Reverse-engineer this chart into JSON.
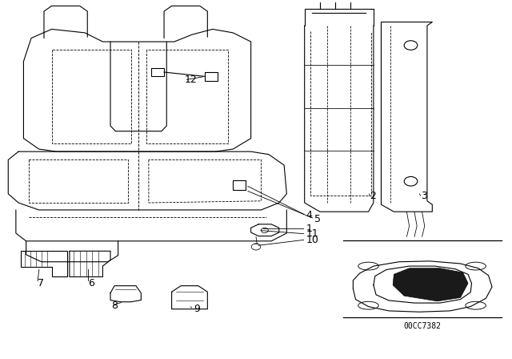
{
  "title": "",
  "background_color": "#ffffff",
  "fig_width": 6.4,
  "fig_height": 4.48,
  "dpi": 100,
  "code_text": "00CC7382",
  "line_color": "#000000",
  "text_color": "#000000",
  "font_size": 9,
  "label_font_size": 9
}
